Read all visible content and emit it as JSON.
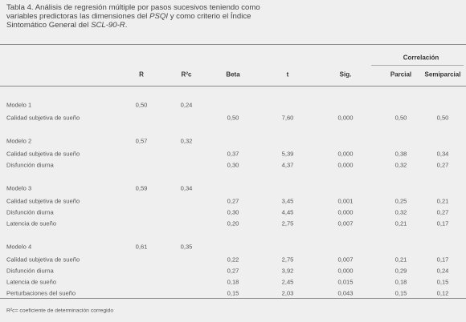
{
  "caption": [
    "Tabla 4. Análisis de regresión múltiple por pasos sucesivos teniendo como variables predictoras las dimensiones del ",
    "PSQI",
    " y como criterio el Índice Sintomático General del ",
    "SCL-90-R",
    "."
  ],
  "table": {
    "group_header": "Correlación",
    "columns": [
      "R",
      "R²c",
      "Beta",
      "t",
      "Sig.",
      "Parcial",
      "Semiparcial"
    ],
    "models": [
      {
        "label": "Modelo 1",
        "R": "0,50",
        "R2c": "0,24",
        "predictors": [
          {
            "label": "Calidad subjetiva de sueño",
            "cells": [
              "0,50",
              "7,60",
              "0,000",
              "0,50",
              "0,50"
            ]
          }
        ]
      },
      {
        "label": "Modelo 2",
        "R": "0,57",
        "R2c": "0,32",
        "predictors": [
          {
            "label": "Calidad subjetiva de sueño",
            "cells": [
              "0,37",
              "5,39",
              "0,000",
              "0,38",
              "0,34"
            ]
          },
          {
            "label": "Disfunción diurna",
            "cells": [
              "0,30",
              "4,37",
              "0,000",
              "0,32",
              "0,27"
            ]
          }
        ]
      },
      {
        "label": "Modelo 3",
        "R": "0,59",
        "R2c": "0,34",
        "predictors": [
          {
            "label": "Calidad subjetiva de sueño",
            "cells": [
              "0,27",
              "3,45",
              "0,001",
              "0,25",
              "0,21"
            ]
          },
          {
            "label": "Disfunción diurna",
            "cells": [
              "0,30",
              "4,45",
              "0,000",
              "0,32",
              "0,27"
            ]
          },
          {
            "label": "Latencia de sueño",
            "cells": [
              "0,20",
              "2,75",
              "0,007",
              "0,21",
              "0,17"
            ]
          }
        ]
      },
      {
        "label": "Modelo 4",
        "R": "0,61",
        "R2c": "0,35",
        "predictors": [
          {
            "label": "Calidad subjetiva de sueño",
            "cells": [
              "0,22",
              "2,75",
              "0,007",
              "0,21",
              "0,17"
            ]
          },
          {
            "label": "Disfunción diurna",
            "cells": [
              "0,27",
              "3,92",
              "0,000",
              "0,29",
              "0,24"
            ]
          },
          {
            "label": "Latencia de sueño",
            "cells": [
              "0,18",
              "2,45",
              "0,015",
              "0,18",
              "0,15"
            ]
          },
          {
            "label": "Perturbaciones del sueño",
            "cells": [
              "0,15",
              "2,03",
              "0,043",
              "0,15",
              "0,12"
            ]
          }
        ]
      }
    ],
    "footnote": "R²c= coeficiente de determinación corregido"
  }
}
